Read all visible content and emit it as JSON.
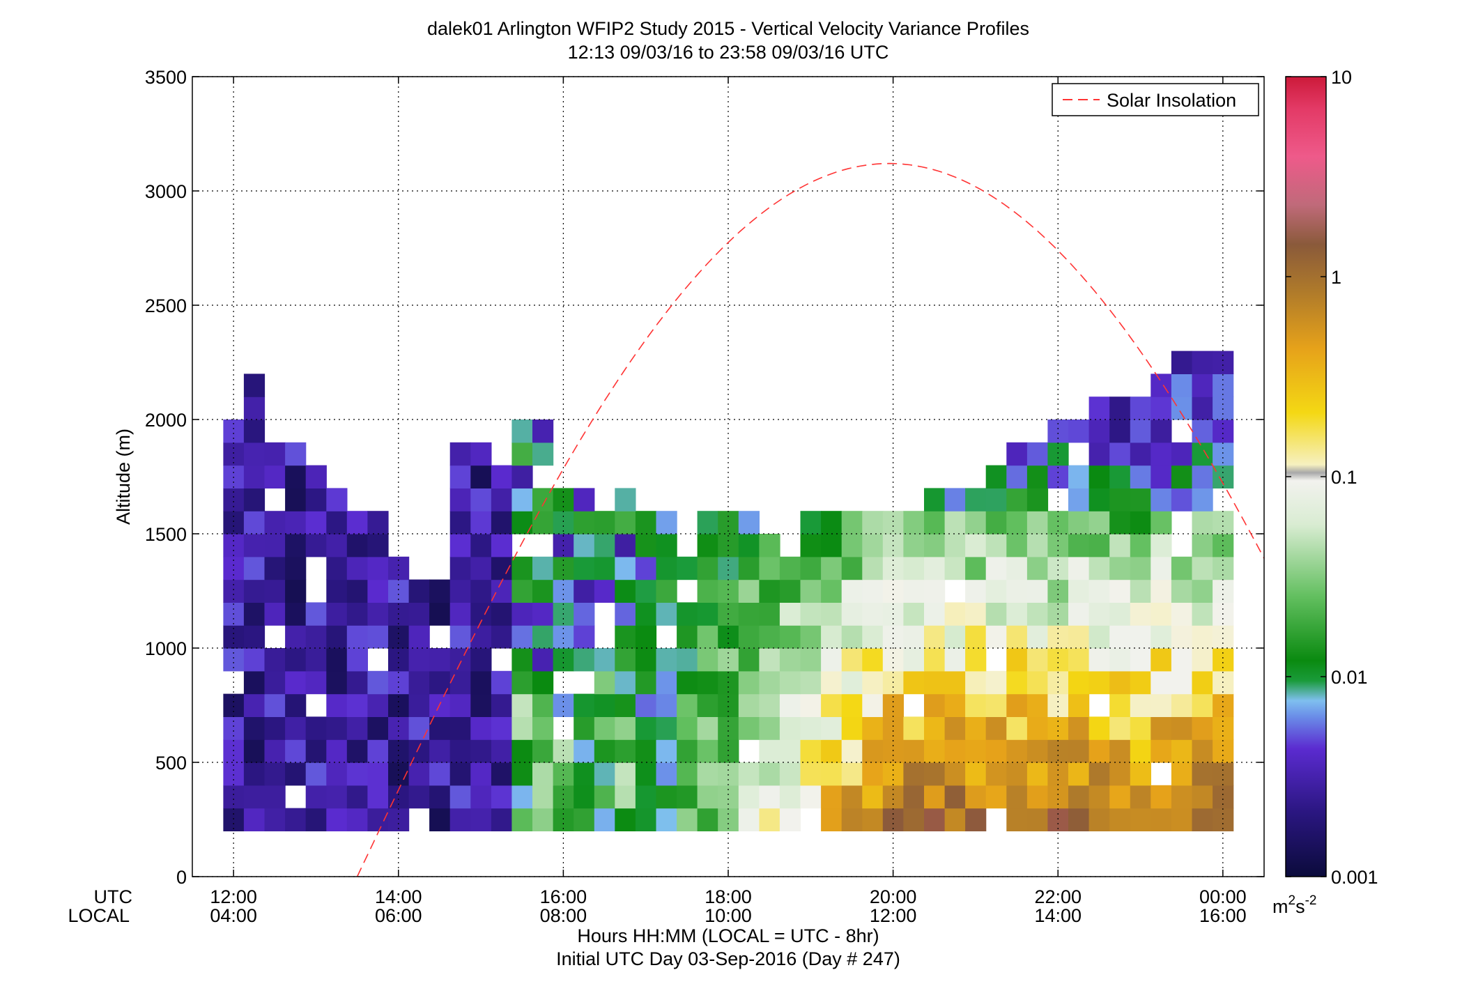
{
  "chart_data": {
    "type": "heatmap",
    "title": "dalek01 Arlington WFIP2 Study 2015 - Vertical Velocity Variance Profiles",
    "subtitle": "12:13 09/03/16 to 23:58 09/03/16  UTC",
    "ylabel": "Altitude (m)",
    "xlabel": "Hours HH:MM  (LOCAL = UTC - 8hr)",
    "xlabel2": "Initial UTC Day 03-Sep-2016 (Day # 247)",
    "x_row_labels": [
      "UTC",
      "LOCAL"
    ],
    "x_ticks_utc": [
      "12:00",
      "14:00",
      "16:00",
      "18:00",
      "20:00",
      "22:00",
      "00:00"
    ],
    "x_ticks_local": [
      "04:00",
      "06:00",
      "08:00",
      "10:00",
      "12:00",
      "14:00",
      "16:00"
    ],
    "x_tick_hours": [
      12,
      14,
      16,
      18,
      20,
      22,
      24
    ],
    "xlim_hours": [
      11.5,
      24.5
    ],
    "y_ticks": [
      "0",
      "500",
      "1000",
      "1500",
      "2000",
      "2500",
      "3000",
      "3500"
    ],
    "ylim": [
      0,
      3500
    ],
    "grid": true,
    "legend": {
      "entries": [
        "Solar Insolation"
      ],
      "placement": "top-right"
    },
    "colorbar": {
      "scale": "log",
      "range": [
        0.001,
        10
      ],
      "ticks": [
        "0.001",
        "0.01",
        "0.1",
        "1",
        "10"
      ],
      "unit_base": "m",
      "unit_exp1": "2",
      "unit_mid": "s",
      "unit_exp2": "-2"
    },
    "heatmap": {
      "x_start_hours": 12.0,
      "x_step_hours": 0.25,
      "y_start_m": 200,
      "y_step_m": 100,
      "value_units": "m2 s-2",
      "note_values": "each row: variance per 15-min column starting 12:00 UTC; null = no data",
      "rows": []
    },
    "solar_insolation": {
      "peak_hour_utc": 19.95,
      "peak_value_altitude_scale": 3120,
      "zero_hour_utc": 13.5,
      "end_hour_utc": 24.5,
      "end_value_altitude_scale": 1450
    }
  },
  "colors": {
    "solar_line": "#ff3333",
    "grid": "#000000",
    "background": "#ffffff",
    "colormap_stops": [
      "#0b0b3b",
      "#2a1680",
      "#5b2bd0",
      "#6a8de8",
      "#7fbfef",
      "#1a9b3a",
      "#0a8a10",
      "#62bf5f",
      "#d9ecd2",
      "#f2f2ee",
      "#f4d814",
      "#e6a21a",
      "#b07b2a",
      "#8a5a3a",
      "#ee5a8a",
      "#cc1a3a"
    ]
  }
}
